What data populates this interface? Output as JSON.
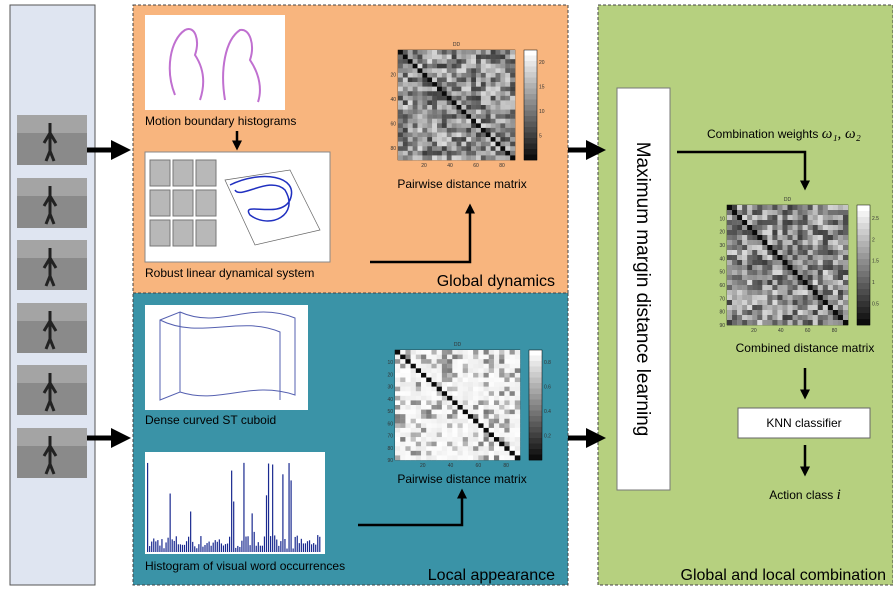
{
  "global": {
    "mbh_caption": "Motion boundary histograms",
    "rlds_caption": "Robust linear dynamical system",
    "matrix_caption": "Pairwise distance matrix",
    "label": "Global dynamics"
  },
  "local": {
    "cuboid_caption": "Dense curved ST cuboid",
    "hist_caption": "Histogram of visual word occurrences",
    "matrix_caption": "Pairwise distance matrix",
    "label": "Local appearance"
  },
  "combination": {
    "mmdl": "Maximum margin distance learning",
    "weights": "Combination weights",
    "weights_symbols": "ω₁, ω₂",
    "matrix_caption": "Combined distance matrix",
    "classifier": "KNN classifier",
    "output": "Action class",
    "output_symbol": "i",
    "label": "Global and local combination"
  },
  "matrices": [
    {
      "title": "DD",
      "xticks": [
        20,
        40,
        60,
        80
      ],
      "yticks": [
        20,
        40,
        60,
        80
      ],
      "cbar_ticks": [
        5,
        10,
        15,
        20
      ]
    },
    {
      "title": "DD",
      "xticks": [
        20,
        40,
        60,
        80
      ],
      "yticks": [
        10,
        20,
        30,
        40,
        50,
        60,
        70,
        80,
        90
      ],
      "cbar_ticks": [
        0.2,
        0.4,
        0.6,
        0.8
      ]
    },
    {
      "title": "DD",
      "xticks": [
        20,
        40,
        60,
        80
      ],
      "yticks": [
        10,
        20,
        30,
        40,
        50,
        60,
        70,
        80,
        90
      ],
      "cbar_ticks": [
        0.5,
        1,
        1.5,
        2,
        2.5
      ]
    }
  ]
}
